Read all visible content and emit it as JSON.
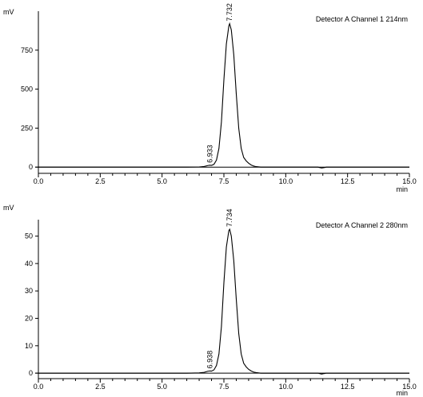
{
  "chart_data": [
    {
      "type": "line",
      "title": "Detector A Channel 1 214nm",
      "ylabel": "mV",
      "xlabel": "min",
      "xlim": [
        0.0,
        15.0
      ],
      "ylim": [
        -40,
        1000
      ],
      "xticks": [
        "0.0",
        "2.5",
        "5.0",
        "7.5",
        "10.0",
        "12.5",
        "15.0"
      ],
      "xtick_values": [
        0.0,
        2.5,
        5.0,
        7.5,
        10.0,
        12.5,
        15.0
      ],
      "yticks": [
        "0",
        "250",
        "500",
        "750"
      ],
      "ytick_values": [
        0,
        250,
        500,
        750
      ],
      "grid": false,
      "peaks": [
        {
          "label": "6.933",
          "rt": 6.933,
          "height": 12
        },
        {
          "label": "7.732",
          "rt": 7.732,
          "height": 920
        }
      ],
      "series": [
        {
          "x": [
            0.0,
            5.0,
            6.0,
            6.5,
            6.7,
            6.85,
            6.933,
            7.0,
            7.1,
            7.2,
            7.3,
            7.4,
            7.5,
            7.6,
            7.7,
            7.732,
            7.8,
            7.9,
            8.0,
            8.1,
            8.2,
            8.3,
            8.4,
            8.5,
            8.6,
            8.7,
            8.8,
            9.0,
            9.5,
            10.0,
            11.3,
            11.45,
            11.55,
            11.65,
            12.0,
            15.0
          ],
          "values": [
            0,
            0,
            0,
            1,
            4,
            10,
            12,
            11,
            18,
            45,
            120,
            290,
            560,
            790,
            905,
            920,
            880,
            720,
            470,
            250,
            120,
            62,
            40,
            25,
            14,
            7,
            3,
            0,
            0,
            0,
            0,
            -6,
            -3,
            0,
            0,
            0
          ]
        }
      ]
    },
    {
      "type": "line",
      "title": "Detector A Channel 2 280nm",
      "ylabel": "mV",
      "xlabel": "min",
      "xlim": [
        0.0,
        15.0
      ],
      "ylim": [
        -2,
        56
      ],
      "xticks": [
        "0.0",
        "2.5",
        "5.0",
        "7.5",
        "10.0",
        "12.5",
        "15.0"
      ],
      "xtick_values": [
        0.0,
        2.5,
        5.0,
        7.5,
        10.0,
        12.5,
        15.0
      ],
      "yticks": [
        "0",
        "10",
        "20",
        "30",
        "40",
        "50"
      ],
      "ytick_values": [
        0,
        10,
        20,
        30,
        40,
        50
      ],
      "grid": false,
      "peaks": [
        {
          "label": "6.938",
          "rt": 6.938,
          "height": 0.8
        },
        {
          "label": "7.734",
          "rt": 7.734,
          "height": 52.5
        }
      ],
      "series": [
        {
          "x": [
            0.0,
            5.0,
            6.0,
            6.5,
            6.7,
            6.85,
            6.938,
            7.0,
            7.1,
            7.2,
            7.3,
            7.4,
            7.5,
            7.6,
            7.7,
            7.734,
            7.8,
            7.9,
            8.0,
            8.1,
            8.2,
            8.3,
            8.4,
            8.5,
            8.6,
            8.7,
            8.8,
            9.0,
            9.5,
            10.0,
            11.3,
            11.45,
            11.55,
            11.65,
            12.0,
            15.0
          ],
          "values": [
            0,
            0,
            0,
            0.1,
            0.3,
            0.7,
            0.8,
            0.75,
            1.2,
            2.8,
            7,
            17,
            33,
            46,
            52,
            52.5,
            50,
            41,
            27,
            14.5,
            7,
            3.6,
            2.3,
            1.4,
            0.8,
            0.4,
            0.2,
            0,
            0,
            0,
            0,
            -0.35,
            -0.15,
            0,
            0,
            0
          ]
        }
      ]
    }
  ]
}
